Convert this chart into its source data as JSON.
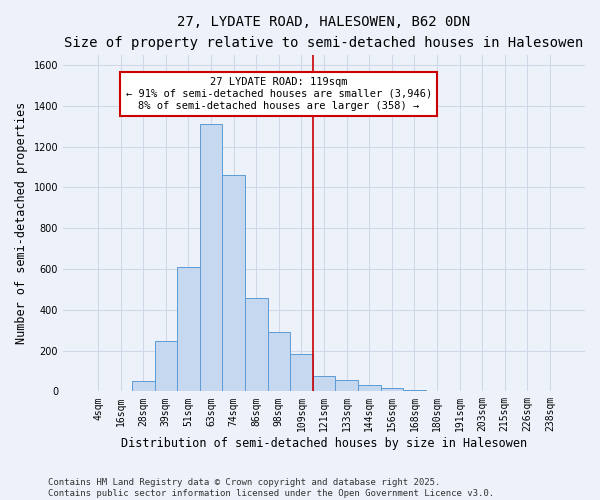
{
  "title_line1": "27, LYDATE ROAD, HALESOWEN, B62 0DN",
  "title_line2": "Size of property relative to semi-detached houses in Halesowen",
  "xlabel": "Distribution of semi-detached houses by size in Halesowen",
  "ylabel": "Number of semi-detached properties",
  "bin_labels": [
    "4sqm",
    "16sqm",
    "28sqm",
    "39sqm",
    "51sqm",
    "63sqm",
    "74sqm",
    "86sqm",
    "98sqm",
    "109sqm",
    "121sqm",
    "133sqm",
    "144sqm",
    "156sqm",
    "168sqm",
    "180sqm",
    "191sqm",
    "203sqm",
    "215sqm",
    "226sqm",
    "238sqm"
  ],
  "bar_heights": [
    0,
    3,
    50,
    245,
    610,
    1310,
    1060,
    460,
    290,
    185,
    75,
    55,
    30,
    15,
    5,
    2,
    0,
    0,
    0,
    0,
    0
  ],
  "bar_color": "#c5d8f0",
  "bar_edge_color": "#5b9bd5",
  "vline_x_index": 10,
  "vline_color": "#cc0000",
  "annotation_text": "27 LYDATE ROAD: 119sqm\n← 91% of semi-detached houses are smaller (3,946)\n8% of semi-detached houses are larger (358) →",
  "annotation_box_color": "#ffffff",
  "annotation_box_edge_color": "#cc0000",
  "ylim": [
    0,
    1650
  ],
  "yticks": [
    0,
    200,
    400,
    600,
    800,
    1000,
    1200,
    1400,
    1600
  ],
  "footer_text": "Contains HM Land Registry data © Crown copyright and database right 2025.\nContains public sector information licensed under the Open Government Licence v3.0.",
  "background_color": "#edf2fa",
  "grid_color": "#d0d8e8",
  "title_fontsize": 10,
  "subtitle_fontsize": 9,
  "axis_label_fontsize": 8.5,
  "tick_fontsize": 7,
  "annotation_fontsize": 7.5,
  "footer_fontsize": 6.5
}
